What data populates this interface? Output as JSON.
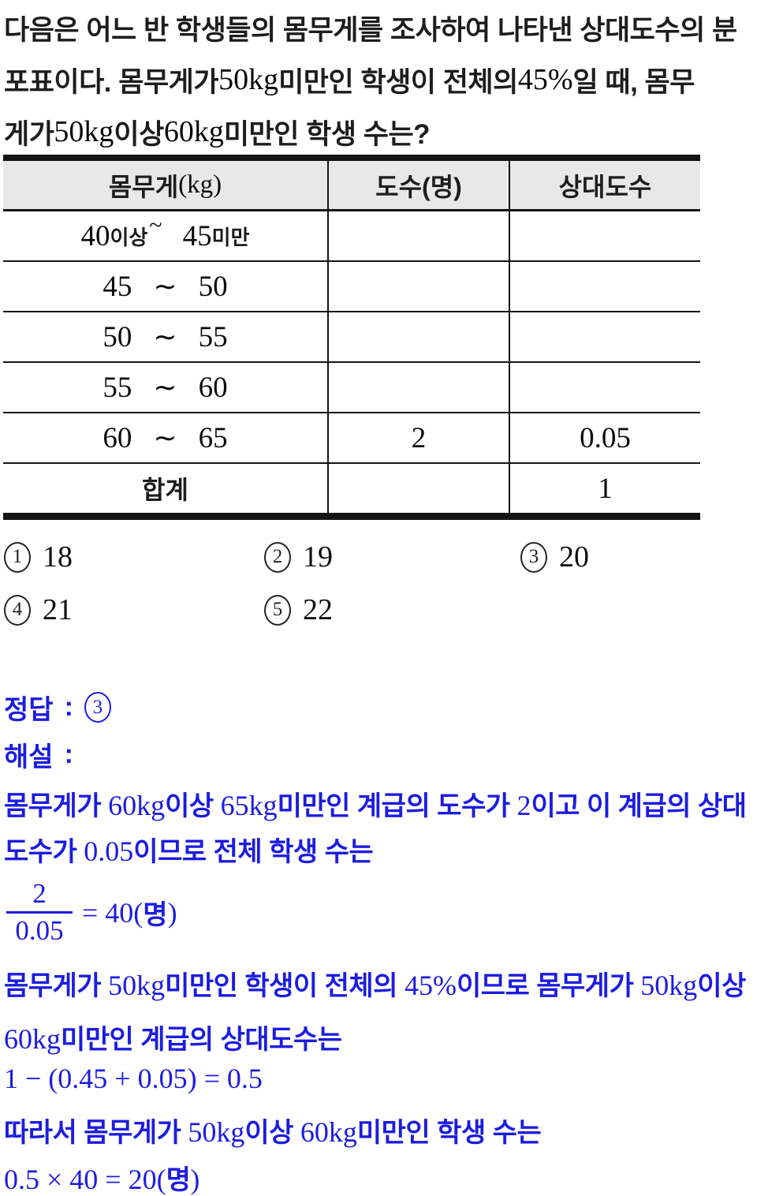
{
  "colors": {
    "ink": "#1d1d1d",
    "number_ink": "#0a0a0a",
    "blue": "#1c1ce0",
    "table_header_bg": "#e8e8e8",
    "table_border": "#141414"
  },
  "problem": {
    "lines": [
      [
        {
          "t": "다음은 어느 반 학생들의 몸무게를 조사하여 나타낸 상대도수의 분",
          "f": "kr"
        }
      ],
      [
        {
          "t": "포표이다. 몸무게가 ",
          "f": "kr"
        },
        {
          "t": "50kg",
          "f": "num"
        },
        {
          "t": " 미만인 학생이 전체의 ",
          "f": "kr"
        },
        {
          "t": "45%",
          "f": "num"
        },
        {
          "t": "일 때, 몸무",
          "f": "kr"
        }
      ],
      [
        {
          "t": "게가 ",
          "f": "kr"
        },
        {
          "t": "50kg",
          "f": "num"
        },
        {
          "t": " 이상 ",
          "f": "kr"
        },
        {
          "t": "60kg",
          "f": "num"
        },
        {
          "t": " 미만인 학생 수는?",
          "f": "kr"
        }
      ]
    ]
  },
  "table": {
    "headers": [
      [
        {
          "t": "몸무게",
          "f": "kr"
        },
        {
          "t": "(kg)",
          "f": "num"
        }
      ],
      [
        {
          "t": "도수(명)",
          "f": "kr"
        }
      ],
      [
        {
          "t": "상대도수",
          "f": "kr"
        }
      ]
    ],
    "rows": [
      {
        "from": "40",
        "from_suffix": "이상",
        "sup_tilde": "~",
        "to": "45",
        "to_suffix": "미만",
        "freq": "",
        "rel": ""
      },
      {
        "from": "45",
        "tilde": "∼",
        "to": "50",
        "freq": "",
        "rel": ""
      },
      {
        "from": "50",
        "tilde": "∼",
        "to": "55",
        "freq": "",
        "rel": ""
      },
      {
        "from": "55",
        "tilde": "∼",
        "to": "60",
        "freq": "",
        "rel": ""
      },
      {
        "from": "60",
        "tilde": "∼",
        "to": "65",
        "freq": "2",
        "rel": "0.05"
      },
      {
        "label": "합계",
        "freq": "",
        "rel": "1"
      }
    ]
  },
  "choices": {
    "items": [
      {
        "n": "1",
        "v": "18"
      },
      {
        "n": "2",
        "v": "19"
      },
      {
        "n": "3",
        "v": "20"
      },
      {
        "n": "4",
        "v": "21"
      },
      {
        "n": "5",
        "v": "22"
      }
    ]
  },
  "answer": {
    "label": "정답",
    "colon": ":",
    "number": "3"
  },
  "solution": {
    "label": "해설",
    "colon": ":",
    "lines": [
      [
        {
          "t": "몸무게가 ",
          "f": "kr"
        },
        {
          "t": "60kg",
          "f": "num"
        },
        {
          "t": "이상 ",
          "f": "kr"
        },
        {
          "t": "65kg",
          "f": "num"
        },
        {
          "t": "미만인 계급의 도수가 ",
          "f": "kr"
        },
        {
          "t": "2",
          "f": "num"
        },
        {
          "t": "이고 이 계급의 상대",
          "f": "kr"
        }
      ],
      [
        {
          "t": "도수가 ",
          "f": "kr"
        },
        {
          "t": "0.05",
          "f": "num"
        },
        {
          "t": "이므로 전체 학생 수는",
          "f": "kr"
        }
      ],
      [
        {
          "t": "몸무게가 ",
          "f": "kr"
        },
        {
          "t": "50kg",
          "f": "num"
        },
        {
          "t": "미만인 학생이 전체의 ",
          "f": "kr"
        },
        {
          "t": "45%",
          "f": "num"
        },
        {
          "t": "이므로 몸무게가 ",
          "f": "kr"
        },
        {
          "t": "50kg",
          "f": "num"
        },
        {
          "t": "이상",
          "f": "kr"
        }
      ],
      [
        {
          "t": "60kg",
          "f": "num"
        },
        {
          "t": "미만인 계급의 상대도수는",
          "f": "kr"
        }
      ],
      [
        {
          "t": "1 − (0.45 + 0.05) = 0.5",
          "f": "num"
        }
      ],
      [
        {
          "t": "따라서 몸무게가 ",
          "f": "kr"
        },
        {
          "t": "50kg",
          "f": "num"
        },
        {
          "t": "이상 ",
          "f": "kr"
        },
        {
          "t": "60kg",
          "f": "num"
        },
        {
          "t": "미만인 학생 수는",
          "f": "kr"
        }
      ],
      [
        {
          "t": "0.5 × 40 = 20(",
          "f": "num"
        },
        {
          "t": "명",
          "f": "kr"
        },
        {
          "t": ")",
          "f": "num"
        }
      ]
    ],
    "fraction": {
      "num": "2",
      "den": "0.05",
      "rest": [
        {
          "t": "= 40(",
          "f": "num"
        },
        {
          "t": "명",
          "f": "kr"
        },
        {
          "t": ")",
          "f": "num"
        }
      ]
    }
  }
}
